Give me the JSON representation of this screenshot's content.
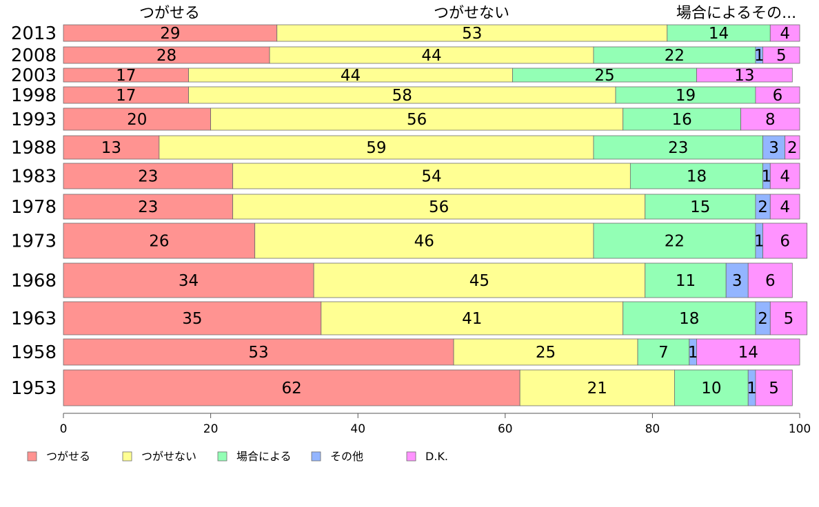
{
  "chart_data": {
    "type": "bar",
    "orientation": "horizontal",
    "stacked": true,
    "title": "",
    "xlabel": "",
    "ylabel": "",
    "xlim": [
      0,
      100
    ],
    "x_ticks": [
      0,
      20,
      40,
      60,
      80,
      100
    ],
    "grid": false,
    "legend_position": "bottom",
    "column_labels": [
      "つがせる",
      "つがせない",
      "場合によるその..."
    ],
    "categories": [
      "2013",
      "2008",
      "2003",
      "1998",
      "1993",
      "1988",
      "1983",
      "1978",
      "1973",
      "1968",
      "1963",
      "1958",
      "1953"
    ],
    "series": [
      {
        "name": "つがせる",
        "color": "#FF9391",
        "values": [
          29,
          28,
          17,
          17,
          20,
          13,
          23,
          23,
          26,
          34,
          35,
          53,
          62
        ]
      },
      {
        "name": "つがせない",
        "color": "#FFFF93",
        "values": [
          53,
          44,
          44,
          58,
          56,
          59,
          54,
          56,
          46,
          45,
          41,
          25,
          21
        ]
      },
      {
        "name": "場合による",
        "color": "#93FFB5",
        "values": [
          14,
          22,
          25,
          19,
          16,
          23,
          18,
          15,
          22,
          11,
          18,
          7,
          10
        ]
      },
      {
        "name": "その他",
        "color": "#93B5FF",
        "values": [
          0,
          1,
          0,
          0,
          0,
          3,
          1,
          2,
          1,
          3,
          2,
          1,
          1
        ]
      },
      {
        "name": "D.K.",
        "color": "#FF93FF",
        "values": [
          4,
          5,
          13,
          6,
          8,
          2,
          4,
          4,
          6,
          6,
          5,
          14,
          5
        ]
      }
    ]
  }
}
